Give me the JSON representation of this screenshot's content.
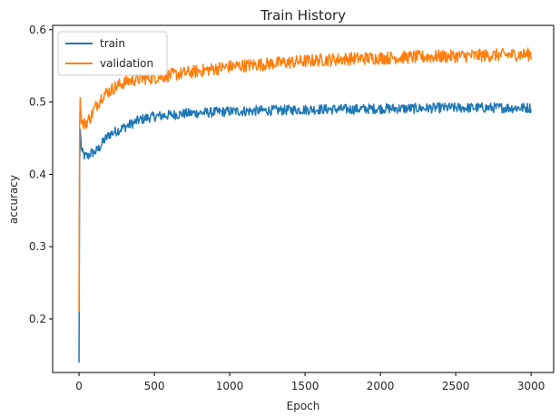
{
  "chart_data": {
    "type": "line",
    "title": "Train History",
    "xlabel": "Epoch",
    "ylabel": "accuracy",
    "xlim": [
      -175,
      3150
    ],
    "ylim": [
      0.126,
      0.606
    ],
    "xticks": [
      0,
      500,
      1000,
      1500,
      2000,
      2500,
      3000
    ],
    "yticks": [
      0.2,
      0.3,
      0.4,
      0.5,
      0.6
    ],
    "xtick_labels": [
      "0",
      "500",
      "1000",
      "1500",
      "2000",
      "2500",
      "3000"
    ],
    "ytick_labels": [
      "0.2",
      "0.3",
      "0.4",
      "0.5",
      "0.6"
    ],
    "grid": false,
    "legend_position": "top-left",
    "series": [
      {
        "name": "train",
        "color": "#1f77b4",
        "x": [
          0,
          5,
          10,
          20,
          40,
          60,
          80,
          100,
          130,
          160,
          200,
          250,
          300,
          350,
          400,
          450,
          500,
          600,
          700,
          800,
          900,
          1000,
          1200,
          1400,
          1600,
          1800,
          2000,
          2200,
          2400,
          2600,
          2800,
          3000
        ],
        "y": [
          0.14,
          0.48,
          0.45,
          0.43,
          0.425,
          0.425,
          0.43,
          0.43,
          0.435,
          0.445,
          0.455,
          0.46,
          0.465,
          0.47,
          0.475,
          0.478,
          0.48,
          0.482,
          0.484,
          0.485,
          0.486,
          0.487,
          0.488,
          0.489,
          0.49,
          0.49,
          0.491,
          0.491,
          0.492,
          0.492,
          0.492,
          0.492
        ]
      },
      {
        "name": "validation",
        "color": "#ff7f0e",
        "x": [
          0,
          5,
          10,
          20,
          40,
          60,
          80,
          100,
          130,
          160,
          200,
          250,
          300,
          350,
          400,
          450,
          500,
          600,
          700,
          800,
          900,
          1000,
          1200,
          1400,
          1600,
          1800,
          2000,
          2200,
          2400,
          2600,
          2800,
          3000
        ],
        "y": [
          0.21,
          0.53,
          0.49,
          0.47,
          0.47,
          0.475,
          0.48,
          0.49,
          0.5,
          0.51,
          0.515,
          0.522,
          0.527,
          0.53,
          0.532,
          0.533,
          0.534,
          0.537,
          0.54,
          0.543,
          0.546,
          0.549,
          0.552,
          0.555,
          0.558,
          0.56,
          0.561,
          0.562,
          0.563,
          0.564,
          0.565,
          0.566
        ]
      }
    ]
  }
}
